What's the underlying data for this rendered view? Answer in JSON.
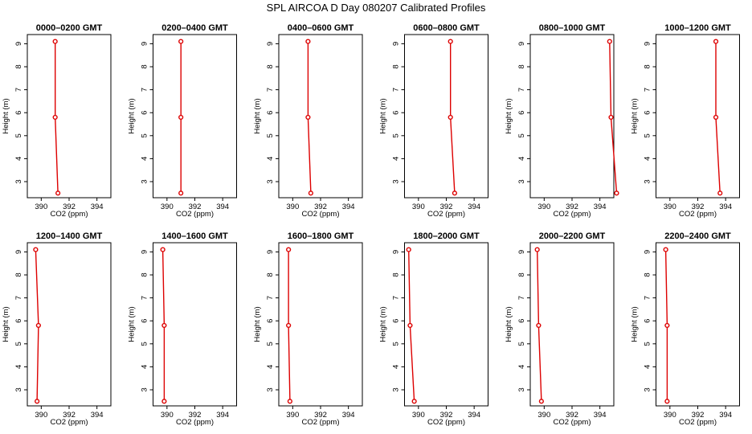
{
  "figure": {
    "title": "SPL AIRCOA D  Day 080207  Calibrated Profiles",
    "line_color": "#dd0000"
  },
  "chart_data": [
    {
      "type": "line",
      "title": "0000–0200 GMT",
      "xlabel": "CO2 (ppm)",
      "ylabel": "Height (m)",
      "xlim": [
        389,
        395
      ],
      "ylim": [
        2.3,
        9.4
      ],
      "xticks": [
        390,
        392,
        394
      ],
      "yticks": [
        3,
        4,
        5,
        6,
        7,
        8,
        9
      ],
      "series": [
        {
          "x": [
            391.2,
            391.0,
            391.0
          ],
          "y": [
            2.5,
            5.8,
            9.1
          ]
        }
      ]
    },
    {
      "type": "line",
      "title": "0200–0400 GMT",
      "xlabel": "CO2 (ppm)",
      "ylabel": "Height (m)",
      "xlim": [
        389,
        395
      ],
      "ylim": [
        2.3,
        9.4
      ],
      "xticks": [
        390,
        392,
        394
      ],
      "yticks": [
        3,
        4,
        5,
        6,
        7,
        8,
        9
      ],
      "series": [
        {
          "x": [
            391.0,
            391.0,
            391.0
          ],
          "y": [
            2.5,
            5.8,
            9.1
          ]
        }
      ]
    },
    {
      "type": "line",
      "title": "0400–0600 GMT",
      "xlabel": "CO2 (ppm)",
      "ylabel": "Height (m)",
      "xlim": [
        389,
        395
      ],
      "ylim": [
        2.3,
        9.4
      ],
      "xticks": [
        390,
        392,
        394
      ],
      "yticks": [
        3,
        4,
        5,
        6,
        7,
        8,
        9
      ],
      "series": [
        {
          "x": [
            391.3,
            391.1,
            391.1
          ],
          "y": [
            2.5,
            5.8,
            9.1
          ]
        }
      ]
    },
    {
      "type": "line",
      "title": "0600–0800 GMT",
      "xlabel": "CO2 (ppm)",
      "ylabel": "Height (m)",
      "xlim": [
        389,
        395
      ],
      "ylim": [
        2.3,
        9.4
      ],
      "xticks": [
        390,
        392,
        394
      ],
      "yticks": [
        3,
        4,
        5,
        6,
        7,
        8,
        9
      ],
      "series": [
        {
          "x": [
            392.6,
            392.3,
            392.3
          ],
          "y": [
            2.5,
            5.8,
            9.1
          ]
        }
      ]
    },
    {
      "type": "line",
      "title": "0800–1000 GMT",
      "xlabel": "CO2 (ppm)",
      "ylabel": "Height (m)",
      "xlim": [
        389,
        395
      ],
      "ylim": [
        2.3,
        9.4
      ],
      "xticks": [
        390,
        392,
        394
      ],
      "yticks": [
        3,
        4,
        5,
        6,
        7,
        8,
        9
      ],
      "series": [
        {
          "x": [
            395.2,
            394.8,
            394.7
          ],
          "y": [
            2.5,
            5.8,
            9.1
          ]
        }
      ]
    },
    {
      "type": "line",
      "title": "1000–1200 GMT",
      "xlabel": "CO2 (ppm)",
      "ylabel": "Height (m)",
      "xlim": [
        389,
        395
      ],
      "ylim": [
        2.3,
        9.4
      ],
      "xticks": [
        390,
        392,
        394
      ],
      "yticks": [
        3,
        4,
        5,
        6,
        7,
        8,
        9
      ],
      "series": [
        {
          "x": [
            393.6,
            393.3,
            393.3
          ],
          "y": [
            2.5,
            5.8,
            9.1
          ]
        }
      ]
    },
    {
      "type": "line",
      "title": "1200–1400 GMT",
      "xlabel": "CO2 (ppm)",
      "ylabel": "Height (m)",
      "xlim": [
        389,
        395
      ],
      "ylim": [
        2.3,
        9.4
      ],
      "xticks": [
        390,
        392,
        394
      ],
      "yticks": [
        3,
        4,
        5,
        6,
        7,
        8,
        9
      ],
      "series": [
        {
          "x": [
            389.7,
            389.8,
            389.6
          ],
          "y": [
            2.5,
            5.8,
            9.1
          ]
        }
      ]
    },
    {
      "type": "line",
      "title": "1400–1600 GMT",
      "xlabel": "CO2 (ppm)",
      "ylabel": "Height (m)",
      "xlim": [
        389,
        395
      ],
      "ylim": [
        2.3,
        9.4
      ],
      "xticks": [
        390,
        392,
        394
      ],
      "yticks": [
        3,
        4,
        5,
        6,
        7,
        8,
        9
      ],
      "series": [
        {
          "x": [
            389.8,
            389.8,
            389.7
          ],
          "y": [
            2.5,
            5.8,
            9.1
          ]
        }
      ]
    },
    {
      "type": "line",
      "title": "1600–1800 GMT",
      "xlabel": "CO2 (ppm)",
      "ylabel": "Height (m)",
      "xlim": [
        389,
        395
      ],
      "ylim": [
        2.3,
        9.4
      ],
      "xticks": [
        390,
        392,
        394
      ],
      "yticks": [
        3,
        4,
        5,
        6,
        7,
        8,
        9
      ],
      "series": [
        {
          "x": [
            389.8,
            389.7,
            389.7
          ],
          "y": [
            2.5,
            5.8,
            9.1
          ]
        }
      ]
    },
    {
      "type": "line",
      "title": "1800–2000 GMT",
      "xlabel": "CO2 (ppm)",
      "ylabel": "Height (m)",
      "xlim": [
        389,
        395
      ],
      "ylim": [
        2.3,
        9.4
      ],
      "xticks": [
        390,
        392,
        394
      ],
      "yticks": [
        3,
        4,
        5,
        6,
        7,
        8,
        9
      ],
      "series": [
        {
          "x": [
            389.7,
            389.4,
            389.3
          ],
          "y": [
            2.5,
            5.8,
            9.1
          ]
        }
      ]
    },
    {
      "type": "line",
      "title": "2000–2200 GMT",
      "xlabel": "CO2 (ppm)",
      "ylabel": "Height (m)",
      "xlim": [
        389,
        395
      ],
      "ylim": [
        2.3,
        9.4
      ],
      "xticks": [
        390,
        392,
        394
      ],
      "yticks": [
        3,
        4,
        5,
        6,
        7,
        8,
        9
      ],
      "series": [
        {
          "x": [
            389.8,
            389.6,
            389.5
          ],
          "y": [
            2.5,
            5.8,
            9.1
          ]
        }
      ]
    },
    {
      "type": "line",
      "title": "2200–2400 GMT",
      "xlabel": "CO2 (ppm)",
      "ylabel": "Height (m)",
      "xlim": [
        389,
        395
      ],
      "ylim": [
        2.3,
        9.4
      ],
      "xticks": [
        390,
        392,
        394
      ],
      "yticks": [
        3,
        4,
        5,
        6,
        7,
        8,
        9
      ],
      "series": [
        {
          "x": [
            389.8,
            389.8,
            389.7
          ],
          "y": [
            2.5,
            5.8,
            9.1
          ]
        }
      ]
    }
  ]
}
